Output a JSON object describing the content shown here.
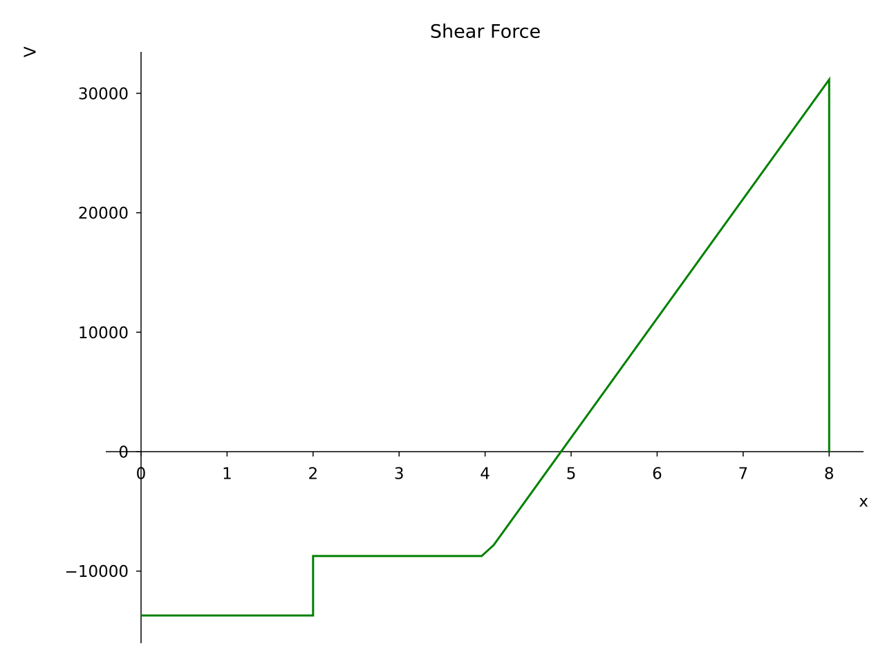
{
  "chart_data": {
    "type": "line",
    "title": "Shear Force",
    "x_label": "x",
    "y_label": "V",
    "x": [
      0,
      2,
      2,
      3.96,
      4.1,
      8,
      8
    ],
    "series": [
      {
        "name": "V",
        "color": "#008000",
        "values": [
          -13720,
          -13720,
          -8740,
          -8740,
          -7820,
          31150,
          0
        ]
      }
    ],
    "xlim": [
      -0.41,
      8.4
    ],
    "xticks": [
      0,
      1,
      2,
      3,
      4,
      5,
      6,
      7,
      8
    ],
    "ylim": [
      -16040,
      33470
    ],
    "yticks": [
      {
        "value": -10000,
        "label": "−10000"
      },
      0,
      10000,
      20000,
      30000
    ]
  }
}
